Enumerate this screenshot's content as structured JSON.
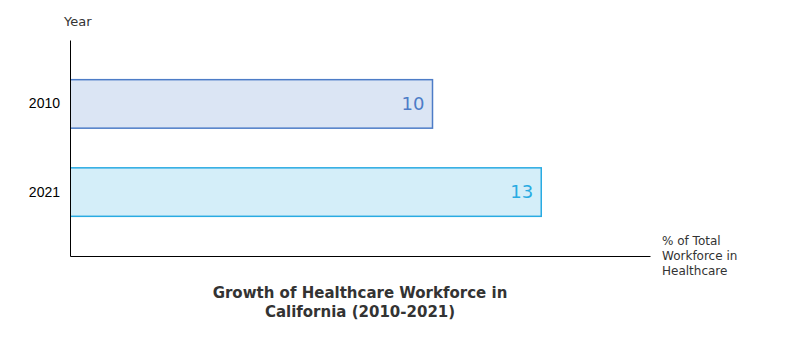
{
  "chart_data": {
    "type": "bar",
    "orientation": "horizontal",
    "title": "Growth of Healthcare Workforce in\nCalifornia (2010-2021)",
    "ylabel": "Year",
    "xlabel": "% of Total\nWorkforce in\nHealthcare",
    "categories": [
      "2010",
      "2021"
    ],
    "values": [
      10,
      13
    ],
    "colors": [
      "#4d7cc7",
      "#29abe2"
    ],
    "xlim": [
      0,
      16
    ],
    "data_labels": true,
    "tick_labels": "y",
    "grid": false
  }
}
